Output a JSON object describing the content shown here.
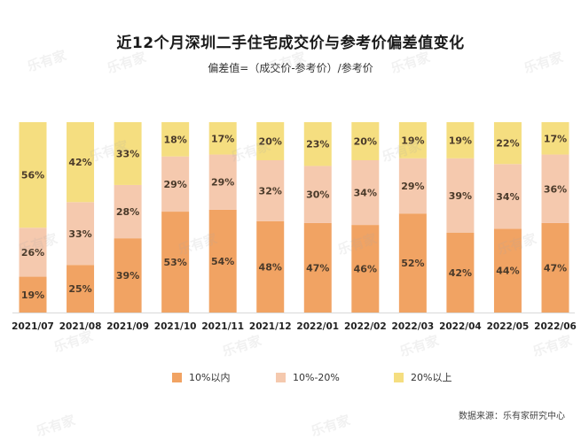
{
  "title": "近12个月深圳二手住宅成交价与参考价偏差值变化",
  "subtitle": "偏差值=（成交价-参考价）/参考价",
  "source": "数据来源：乐有家研究中心",
  "watermark": "乐有家",
  "colors": {
    "seg1": "#F1A363",
    "seg2": "#F5C9AE",
    "seg3": "#F5DE80",
    "label": "#4a3a2a",
    "axis": "#d9d9d9"
  },
  "chart_data": {
    "type": "bar",
    "stacked": true,
    "percent_stacked": true,
    "categories": [
      "2021/07",
      "2021/08",
      "2021/09",
      "2021/10",
      "2021/11",
      "2021/12",
      "2022/01",
      "2022/02",
      "2022/03",
      "2022/04",
      "2022/05",
      "2022/06"
    ],
    "series": [
      {
        "name": "10%以内",
        "color": "#F1A363",
        "values": [
          19,
          25,
          39,
          53,
          54,
          48,
          47,
          46,
          52,
          42,
          44,
          47
        ],
        "labels": [
          "19%",
          "25%",
          "39%",
          "53%",
          "54%",
          "48%",
          "47%",
          "46%",
          "52%",
          "42%",
          "44%",
          "47%"
        ]
      },
      {
        "name": "10%-20%",
        "color": "#F5C9AE",
        "values": [
          26,
          33,
          28,
          29,
          29,
          32,
          30,
          34,
          29,
          39,
          34,
          36
        ],
        "labels": [
          "26%",
          "33%",
          "28%",
          "29%",
          "29%",
          "32%",
          "30%",
          "34%",
          "29%",
          "39%",
          "34%",
          "36%"
        ]
      },
      {
        "name": "20%以上",
        "color": "#F5DE80",
        "values": [
          56,
          42,
          33,
          18,
          17,
          20,
          23,
          20,
          19,
          19,
          22,
          17
        ],
        "labels": [
          "56%",
          "42%",
          "33%",
          "18%",
          "17%",
          "20%",
          "23%",
          "20%",
          "19%",
          "19%",
          "22%",
          "17%"
        ]
      }
    ],
    "legend_position": "bottom",
    "ylim": [
      0,
      100
    ],
    "grid": false
  }
}
